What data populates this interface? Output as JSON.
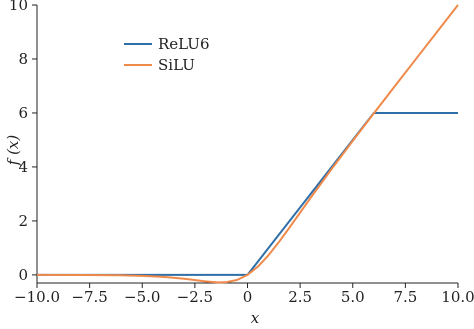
{
  "chart_data": {
    "type": "line",
    "title": "",
    "xlabel": "x",
    "ylabel": "f (x)",
    "xlim": [
      -10,
      10
    ],
    "ylim": [
      -0.3,
      10
    ],
    "grid": false,
    "legend": "upper-left",
    "x_ticks": [
      -10,
      -7.5,
      -5,
      -2.5,
      0,
      2.5,
      5,
      7.5,
      10
    ],
    "x_tick_labels": [
      "−10.0",
      "−7.5",
      "−5.0",
      "−2.5",
      "0",
      "2.5",
      "5.0",
      "7.5",
      "10.0"
    ],
    "y_ticks": [
      0,
      2,
      4,
      6,
      8,
      10
    ],
    "y_tick_labels": [
      "0",
      "2",
      "4",
      "6",
      "8",
      "10"
    ],
    "series": [
      {
        "name": "ReLU6",
        "color": "#2f6fa8",
        "points": [
          [
            -10,
            0
          ],
          [
            0,
            0
          ],
          [
            6,
            6
          ],
          [
            10,
            6
          ]
        ]
      },
      {
        "name": "SiLU",
        "color": "#f08a4b",
        "points": [
          [
            -10,
            0
          ],
          [
            -8,
            -0.003
          ],
          [
            -6,
            -0.015
          ],
          [
            -5,
            -0.034
          ],
          [
            -4,
            -0.072
          ],
          [
            -3,
            -0.142
          ],
          [
            -2,
            -0.238
          ],
          [
            -1.5,
            -0.274
          ],
          [
            -1.28,
            -0.278
          ],
          [
            -1,
            -0.269
          ],
          [
            -0.5,
            -0.189
          ],
          [
            0,
            0
          ],
          [
            0.5,
            0.311
          ],
          [
            1,
            0.731
          ],
          [
            1.5,
            1.226
          ],
          [
            2,
            1.762
          ],
          [
            3,
            2.858
          ],
          [
            4,
            3.928
          ],
          [
            5,
            4.967
          ],
          [
            6,
            5.985
          ],
          [
            7,
            6.994
          ],
          [
            8,
            7.997
          ],
          [
            9,
            8.999
          ],
          [
            10,
            10.0
          ]
        ]
      }
    ]
  }
}
